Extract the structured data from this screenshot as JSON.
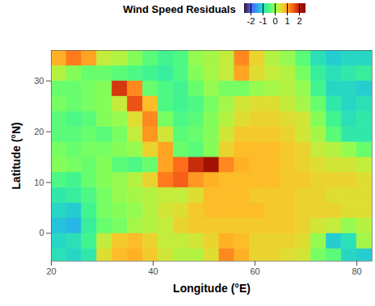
{
  "chart_data": {
    "type": "heatmap",
    "title": "Wind Speed Residuals",
    "xlabel": "Longitude (°E)",
    "ylabel": "Latitude (°N)",
    "xlim": [
      20,
      83
    ],
    "ylim": [
      -5.5,
      36
    ],
    "xticks": [
      20,
      40,
      60,
      80
    ],
    "yticks": [
      0,
      10,
      20,
      30
    ],
    "color_range": [
      -2.5,
      2.5
    ],
    "color_ticks": [
      -2,
      -1,
      0,
      1,
      2
    ],
    "x": [
      21.5,
      24.5,
      27.5,
      30.5,
      33.5,
      36.5,
      39.5,
      42.5,
      45.5,
      48.5,
      51.5,
      54.5,
      57.5,
      60.5,
      63.5,
      66.5,
      69.5,
      72.5,
      75.5,
      78.5,
      81.5
    ],
    "y": [
      -4.5,
      -1.5,
      1.5,
      4.5,
      7.5,
      10.5,
      13.5,
      16.5,
      19.5,
      22.5,
      25.5,
      28.5,
      31.5,
      34.5
    ],
    "values": [
      [
        -0.9,
        -1.0,
        -0.8,
        0.5,
        0.8,
        0.9,
        0.7,
        0.4,
        0.2,
        0.2,
        0.5,
        1.2,
        0.9,
        0.6,
        0.6,
        0.5,
        0.4,
        -0.2,
        -0.4,
        -1.0,
        -1.1
      ],
      [
        -1.0,
        -0.9,
        -0.6,
        0.3,
        0.7,
        0.8,
        0.6,
        0.3,
        0.3,
        0.4,
        0.6,
        0.9,
        0.8,
        0.6,
        0.6,
        0.6,
        0.5,
        0.0,
        -1.1,
        -0.9,
        0.1
      ],
      [
        -1.2,
        -1.3,
        -0.7,
        -0.3,
        -0.2,
        0.1,
        0.2,
        0.3,
        0.6,
        0.7,
        0.7,
        0.7,
        0.7,
        0.7,
        0.7,
        0.7,
        0.6,
        0.4,
        0.3,
        0.0,
        0.2
      ],
      [
        -1.0,
        -1.1,
        -0.6,
        -0.2,
        -0.1,
        0.0,
        0.2,
        0.4,
        0.5,
        0.7,
        0.8,
        0.8,
        0.8,
        0.8,
        0.7,
        0.7,
        0.6,
        0.6,
        0.6,
        0.5,
        0.5
      ],
      [
        -0.8,
        -0.7,
        -0.5,
        -0.2,
        0.0,
        0.1,
        0.2,
        0.3,
        0.3,
        0.5,
        0.8,
        0.8,
        0.8,
        0.7,
        0.7,
        0.7,
        0.6,
        0.6,
        0.5,
        0.5,
        0.5
      ],
      [
        -0.5,
        -0.6,
        -0.3,
        -0.1,
        0.0,
        0.2,
        0.6,
        1.3,
        1.5,
        1.1,
        0.9,
        0.8,
        0.8,
        0.8,
        0.8,
        0.7,
        0.7,
        0.6,
        0.6,
        0.6,
        0.5
      ],
      [
        -0.1,
        -0.2,
        -0.3,
        -0.1,
        -0.4,
        -0.5,
        -0.3,
        1.0,
        1.4,
        1.9,
        2.2,
        1.2,
        0.9,
        0.8,
        0.8,
        0.7,
        0.6,
        0.5,
        0.4,
        0.4,
        0.3
      ],
      [
        -0.2,
        -0.3,
        -0.2,
        -0.2,
        -0.1,
        0.0,
        0.6,
        1.0,
        -0.3,
        -0.4,
        -0.1,
        0.6,
        0.8,
        0.8,
        0.8,
        0.7,
        0.6,
        0.3,
        0.2,
        0.0,
        -0.3
      ],
      [
        -0.4,
        -0.4,
        -0.3,
        -0.4,
        -0.2,
        0.3,
        1.1,
        0.4,
        -0.4,
        -0.3,
        -0.1,
        0.4,
        0.7,
        0.7,
        0.7,
        0.6,
        0.4,
        0.1,
        -0.4,
        -0.8,
        -0.8
      ],
      [
        -0.4,
        -0.5,
        -0.4,
        -0.1,
        0.0,
        0.5,
        1.2,
        -0.2,
        -0.5,
        -0.4,
        -0.1,
        0.2,
        0.5,
        0.6,
        0.6,
        0.5,
        0.4,
        -0.1,
        -0.6,
        -0.9,
        -0.8
      ],
      [
        -0.2,
        -0.3,
        -0.2,
        -0.1,
        0.3,
        1.6,
        0.8,
        -0.5,
        -0.6,
        -0.5,
        -0.2,
        0.1,
        0.4,
        0.5,
        0.5,
        0.3,
        0.1,
        -0.3,
        -0.8,
        -1.0,
        -0.9
      ],
      [
        -0.3,
        -0.3,
        -0.2,
        -0.1,
        1.8,
        1.2,
        -0.3,
        -0.5,
        -0.6,
        -0.3,
        0.0,
        -0.2,
        -0.2,
        0.0,
        0.1,
        0.2,
        0.0,
        -0.6,
        -1.0,
        -1.0,
        -1.1
      ],
      [
        0.2,
        -0.1,
        -0.3,
        -0.3,
        -0.4,
        -0.5,
        -0.6,
        -0.7,
        -0.5,
        -0.1,
        0.1,
        0.3,
        1.0,
        0.5,
        0.3,
        0.2,
        -0.2,
        -0.7,
        -0.9,
        -0.8,
        -0.7
      ],
      [
        0.9,
        1.3,
        1.0,
        0.3,
        0.2,
        -0.1,
        -0.4,
        -0.6,
        -0.5,
        0.0,
        0.1,
        0.3,
        1.2,
        0.6,
        0.2,
        0.0,
        -0.4,
        -0.9,
        -1.1,
        -1.0,
        -1.0
      ]
    ]
  }
}
